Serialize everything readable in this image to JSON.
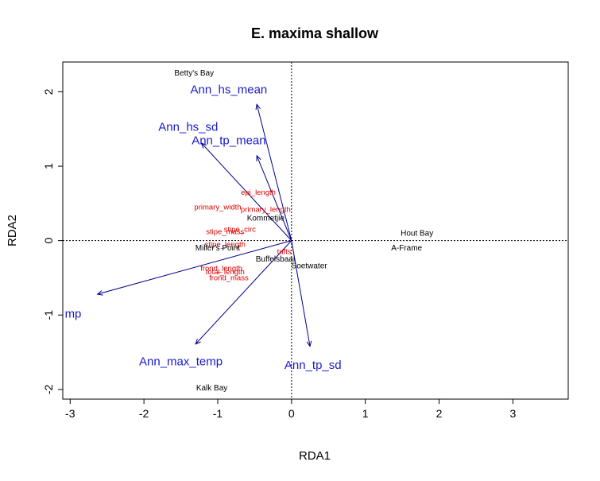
{
  "chart_data": {
    "type": "scatter",
    "title": "E. maxima shallow",
    "xlabel": "RDA1",
    "ylabel": "RDA2",
    "xlim": [
      -3.1,
      3.75
    ],
    "ylim": [
      -2.13,
      2.4
    ],
    "xticks": [
      -3,
      -2,
      -1,
      0,
      1,
      2,
      3
    ],
    "yticks": [
      -2,
      -1,
      0,
      1,
      2
    ],
    "reference_lines": {
      "x": 0,
      "y": 0,
      "style": "dotted"
    },
    "colors": {
      "env_arrows": "#00008b",
      "env_labels": "#1a1acd",
      "species": "#e00000",
      "sites": "#000000",
      "axes": "#000000"
    },
    "sites": [
      {
        "label": "Betty's Bay",
        "x": -1.32,
        "y": 2.25
      },
      {
        "label": "Hout Bay",
        "x": 1.7,
        "y": 0.1
      },
      {
        "label": "A-Frame",
        "x": 1.56,
        "y": -0.1
      },
      {
        "label": "Kommetjie",
        "x": -0.35,
        "y": 0.3
      },
      {
        "label": "Miller's Point",
        "x": -1.0,
        "y": -0.1
      },
      {
        "label": "Buffelsbaai",
        "x": -0.22,
        "y": -0.25
      },
      {
        "label": "Soetwater",
        "x": 0.24,
        "y": -0.34
      },
      {
        "label": "Kalk Bay",
        "x": -1.08,
        "y": -1.98
      }
    ],
    "species": [
      {
        "label": "epi_length",
        "x": -0.45,
        "y": 0.65
      },
      {
        "label": "primary_width",
        "x": -1.0,
        "y": 0.45
      },
      {
        "label": "primary_length",
        "x": -0.35,
        "y": 0.42
      },
      {
        "label": "stipe_circ",
        "x": -0.7,
        "y": 0.15
      },
      {
        "label": "stipe_mass",
        "x": -0.9,
        "y": 0.12
      },
      {
        "label": "stipe_length",
        "x": -0.9,
        "y": -0.05
      },
      {
        "label": "tufts",
        "x": -0.1,
        "y": -0.15
      },
      {
        "label": "frond_length",
        "x": -0.95,
        "y": -0.37
      },
      {
        "label": "total_length",
        "x": -0.9,
        "y": -0.42
      },
      {
        "label": "frond_mass",
        "x": -0.85,
        "y": -0.5
      }
    ],
    "env_vectors": [
      {
        "label": "Ann_hs_mean",
        "x": -0.47,
        "y": 1.83,
        "label_x": -0.85,
        "label_y": 2.03
      },
      {
        "label": "Ann_hs_sd",
        "x": -1.22,
        "y": 1.31,
        "label_x": -1.4,
        "label_y": 1.53
      },
      {
        "label": "Ann_tp_mean",
        "x": -0.47,
        "y": 1.14,
        "label_x": -0.85,
        "label_y": 1.35
      },
      {
        "label": "Ann_mean_temp",
        "label_visible": "mp",
        "x": -2.63,
        "y": -0.72,
        "label_x": -2.96,
        "label_y": -0.98
      },
      {
        "label": "Ann_max_temp",
        "x": -1.3,
        "y": -1.39,
        "label_x": -1.5,
        "label_y": -1.62
      },
      {
        "label": "Ann_tp_sd",
        "x": 0.25,
        "y": -1.42,
        "label_x": 0.29,
        "label_y": -1.67
      }
    ]
  }
}
